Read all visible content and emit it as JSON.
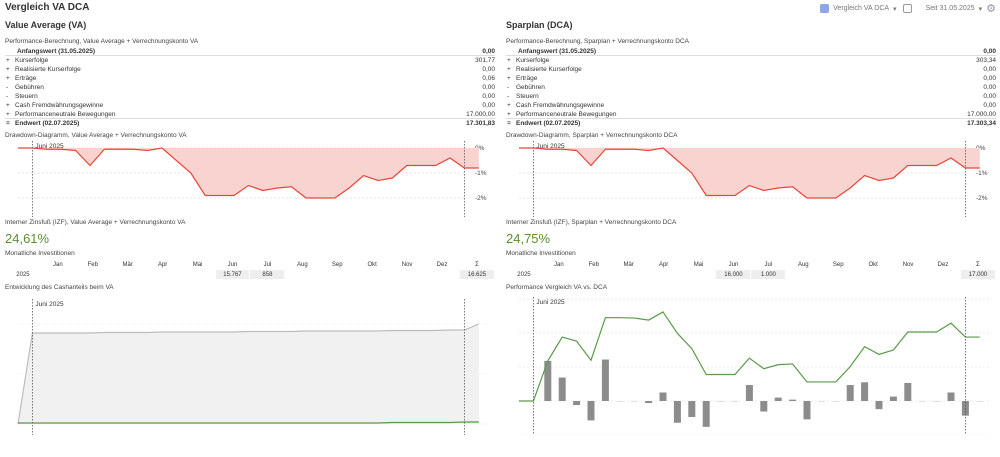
{
  "title": "Vergleich VA DCA",
  "toolbar": {
    "view_label": "Vergleich VA DCA",
    "period_label": "Seit 31.05.2025",
    "view_icon": "dashboard-icon",
    "calendar_icon": "calendar-icon",
    "settings_icon": "gear-icon"
  },
  "colors": {
    "drawdown": "#e8473a",
    "drawdown_fill": "#f9d3cf",
    "irr": "#5a8f2e",
    "line": "#5a9a4a",
    "bars": "#8c8c8c",
    "cash": "#bdbdbd"
  },
  "months": [
    "Jan",
    "Feb",
    "Mär",
    "Apr",
    "Mai",
    "Jun",
    "Jul",
    "Aug",
    "Sep",
    "Okt",
    "Nov",
    "Dez",
    "Σ"
  ],
  "marker_label": "Juni 2025",
  "panels": [
    {
      "heading": "Value Average (VA)",
      "perf_caption": "Performance-Berechnung, Value Average + Verrechnungskonto VA",
      "start": {
        "label": "Anfangswert (31.05.2025)",
        "value": "0,00"
      },
      "rows": [
        {
          "sign": "+",
          "label": "Kurserfolge",
          "value": "301,77"
        },
        {
          "sign": "+",
          "label": "Realisierte Kurserfolge",
          "value": "0,00"
        },
        {
          "sign": "+",
          "label": "Erträge",
          "value": "0,06"
        },
        {
          "sign": "-",
          "label": "Gebühren",
          "value": "0,00"
        },
        {
          "sign": "-",
          "label": "Steuern",
          "value": "0,00"
        },
        {
          "sign": "+",
          "label": "Cash Fremdwährungsgewinne",
          "value": "0,00"
        },
        {
          "sign": "+",
          "label": "Performanceneutrale Bewegungen",
          "value": "17.000,00"
        }
      ],
      "end": {
        "sign": "=",
        "label": "Endwert (02.07.2025)",
        "value": "17.301,83"
      },
      "drawdown_caption": "Drawdown-Diagramm, Value Average + Verrechnungskonto VA",
      "irr_caption": "Interner Zinsfuß (IZF), Value Average + Verrechnungskonto VA",
      "irr": "24,61%",
      "invest_caption": "Monatliche Investitionen",
      "year": "2025",
      "invest": [
        "",
        "",
        "",
        "",
        "",
        "15.767",
        "858",
        "",
        "",
        "",
        "",
        "",
        "16.625"
      ],
      "bottom_caption": "Entwicklung des Cashanteils beim VA"
    },
    {
      "heading": "Sparplan (DCA)",
      "perf_caption": "Performance-Berechnung, Sparplan + Verrechnungskonto DCA",
      "start": {
        "label": "Anfangswert (31.05.2025)",
        "value": "0,00"
      },
      "rows": [
        {
          "sign": "+",
          "label": "Kurserfolge",
          "value": "303,34"
        },
        {
          "sign": "+",
          "label": "Realisierte Kurserfolge",
          "value": "0,00"
        },
        {
          "sign": "+",
          "label": "Erträge",
          "value": "0,00"
        },
        {
          "sign": "-",
          "label": "Gebühren",
          "value": "0,00"
        },
        {
          "sign": "-",
          "label": "Steuern",
          "value": "0,00"
        },
        {
          "sign": "+",
          "label": "Cash Fremdwährungsgewinne",
          "value": "0,00"
        },
        {
          "sign": "+",
          "label": "Performanceneutrale Bewegungen",
          "value": "17.000,00"
        }
      ],
      "end": {
        "sign": "=",
        "label": "Endwert (02.07.2025)",
        "value": "17.303,34"
      },
      "drawdown_caption": "Drawdown-Diagramm, Sparplan + Verrechnungskonto DCA",
      "irr_caption": "Interner Zinsfuß (IZF), Sparplan + Verrechnungskonto DCA",
      "irr": "24,75%",
      "invest_caption": "Monatliche Investitionen",
      "year": "2025",
      "invest": [
        "",
        "",
        "",
        "",
        "",
        "16.000",
        "1.000",
        "",
        "",
        "",
        "",
        "",
        "17.000"
      ],
      "bottom_caption": "Performance Vergleich VA vs. DCA"
    }
  ],
  "drawdown": {
    "yticks": [
      "0%",
      "-1%",
      "-2%"
    ],
    "values": [
      0,
      0,
      -0.05,
      -0.05,
      -0.1,
      -0.7,
      -0.05,
      -0.05,
      -0.05,
      -0.1,
      0,
      -0.5,
      -1.0,
      -1.9,
      -1.9,
      -1.9,
      -1.5,
      -1.7,
      -1.6,
      -1.55,
      -2.0,
      -2.0,
      -2.0,
      -1.6,
      -1.1,
      -1.3,
      -1.2,
      -0.7,
      -0.7,
      -0.7,
      -0.4,
      -0.8,
      -0.8
    ]
  },
  "cash": {
    "total": [
      0,
      0.91,
      0.91,
      0.91,
      0.91,
      0.91,
      0.915,
      0.915,
      0.915,
      0.915,
      0.92,
      0.92,
      0.92,
      0.92,
      0.92,
      0.92,
      0.925,
      0.925,
      0.925,
      0.925,
      0.93,
      0.93,
      0.93,
      0.93,
      0.93,
      0.93,
      0.935,
      0.935,
      0.935,
      0.935,
      0.94,
      0.94,
      1.0
    ],
    "cash": [
      0.01,
      0.01,
      0.01,
      0.01,
      0.01,
      0.01,
      0.01,
      0.01,
      0.01,
      0.01,
      0.01,
      0.01,
      0.01,
      0.01,
      0.01,
      0.01,
      0.01,
      0.01,
      0.01,
      0.01,
      0.01,
      0.01,
      0.01,
      0.01,
      0.01,
      0.01,
      0.015,
      0.015,
      0.015,
      0.015,
      0.015,
      0.02,
      0.02
    ]
  },
  "comparison": {
    "line": [
      0,
      0,
      1.18,
      1.88,
      1.76,
      1.2,
      2.45,
      2.45,
      2.44,
      2.38,
      2.62,
      1.99,
      1.54,
      0.78,
      0.78,
      0.78,
      1.26,
      0.95,
      1.07,
      1.09,
      0.56,
      0.56,
      0.56,
      1.01,
      1.6,
      1.37,
      1.5,
      2.03,
      2.03,
      2.03,
      2.29,
      1.88,
      1.88
    ],
    "bars": [
      0,
      0,
      1.18,
      0.69,
      -0.12,
      -0.57,
      1.22,
      0,
      0,
      -0.06,
      0.25,
      -0.64,
      -0.47,
      -0.76,
      0,
      0,
      0.47,
      -0.31,
      0.1,
      0.04,
      -0.54,
      0,
      0,
      0.47,
      0.55,
      -0.24,
      0.13,
      0.53,
      0,
      0,
      0.25,
      -0.43,
      0
    ]
  }
}
